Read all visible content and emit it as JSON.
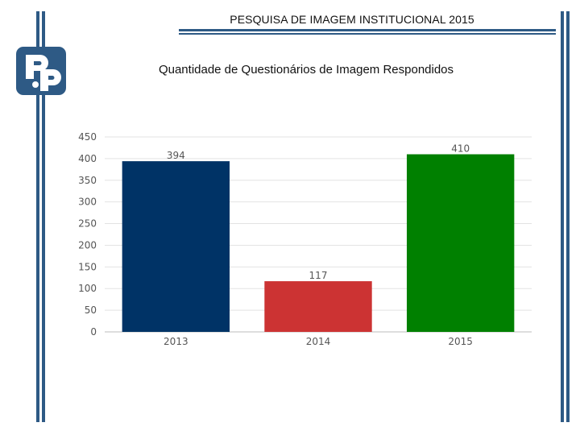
{
  "header": {
    "title": "PESQUISA DE IMAGEM INSTITUCIONAL  2015",
    "accent_color": "#2e5a85"
  },
  "logo": {
    "name": "institution-logo",
    "color": "#2e5a85"
  },
  "chart_data": {
    "type": "bar",
    "title": "Quantidade de Questionários de Imagem Respondidos",
    "categories": [
      "2013",
      "2014",
      "2015"
    ],
    "values": [
      394,
      117,
      410
    ],
    "value_labels": [
      "394",
      "117",
      "410"
    ],
    "colors": [
      "#003366",
      "#cc3333",
      "#008000"
    ],
    "ylim": [
      0,
      450
    ],
    "yticks": [
      0,
      50,
      100,
      150,
      200,
      250,
      300,
      350,
      400,
      450
    ],
    "xlabel": "",
    "ylabel": "",
    "grid": true,
    "legend": "none"
  }
}
